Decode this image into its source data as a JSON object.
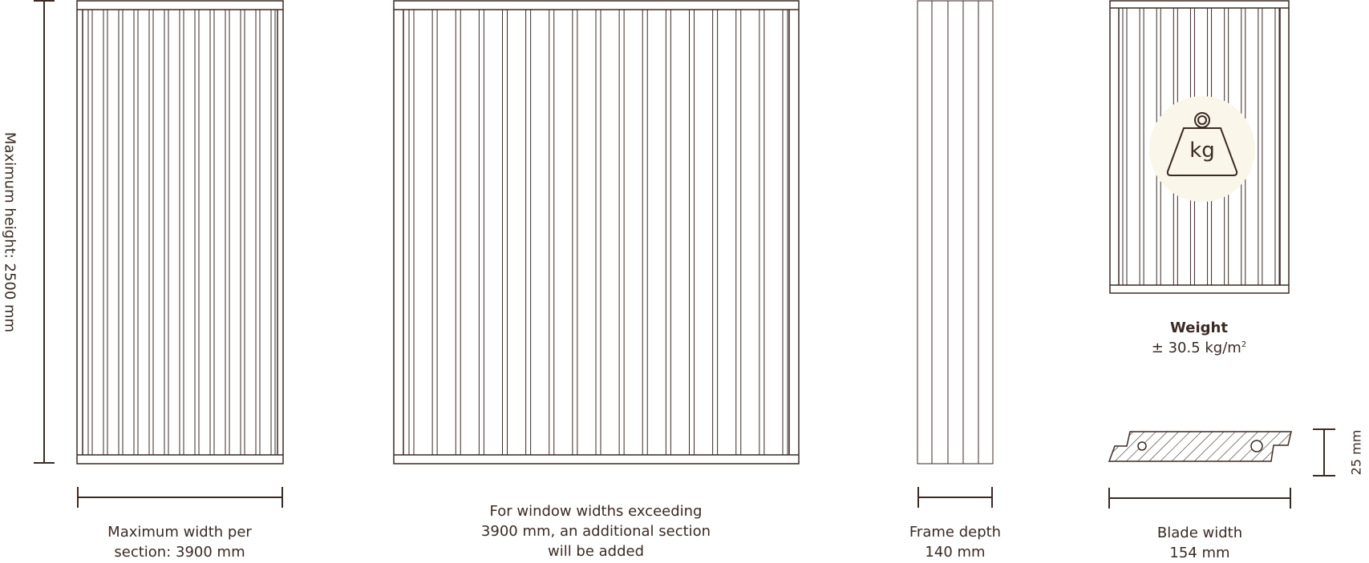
{
  "max_height": {
    "text": "Maximum height: 2500 mm"
  },
  "section_width": {
    "line1": "Maximum width per",
    "line2": "section: 3900 mm"
  },
  "wide_note": {
    "line1": "For window widths exceeding",
    "line2": "3900 mm, an additional section",
    "line3": "will be added"
  },
  "frame_depth": {
    "line1": "Frame depth",
    "line2": "140 mm"
  },
  "weight": {
    "title": "Weight",
    "value": "± 30.5 kg/m",
    "unit_sup": "2",
    "icon_text": "kg"
  },
  "blade_width": {
    "line1": "Blade width",
    "line2": "154 mm"
  },
  "blade_height": {
    "text": "25 mm"
  },
  "colors": {
    "line": "#3a2a24",
    "accent_circle": "#fbf6ea"
  }
}
